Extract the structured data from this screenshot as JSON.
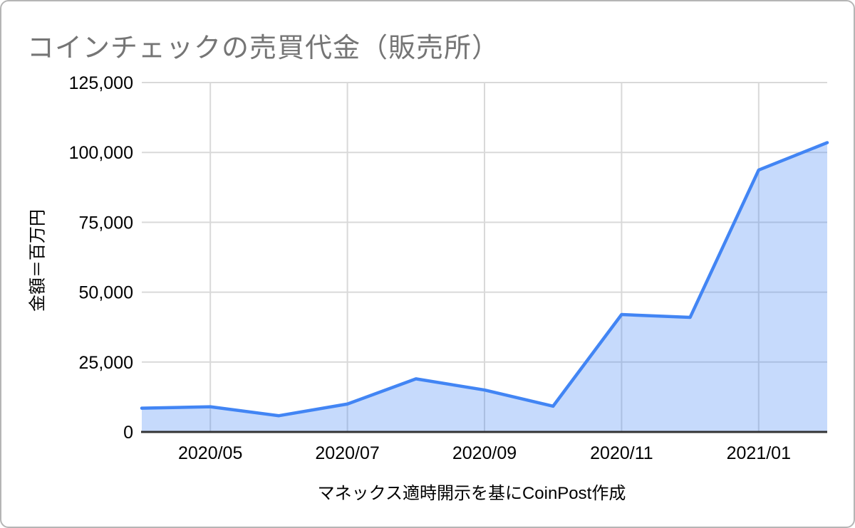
{
  "chart_data": {
    "type": "area",
    "title": "コインチェックの売買代金（販売所）",
    "ylabel": "金額＝百万円",
    "xlabel": "",
    "source_note": "マネックス適時開示を基にCoinPost作成",
    "categories": [
      "2020/04",
      "2020/05",
      "2020/06",
      "2020/07",
      "2020/08",
      "2020/09",
      "2020/10",
      "2020/11",
      "2020/12",
      "2021/01",
      "2021/02"
    ],
    "values": [
      8500,
      9000,
      5800,
      10000,
      19000,
      15000,
      9200,
      42000,
      41000,
      93700,
      103500
    ],
    "x_tick_labels": [
      "2020/05",
      "2020/07",
      "2020/09",
      "2020/11",
      "2021/01"
    ],
    "x_tick_indices": [
      1,
      3,
      5,
      7,
      9
    ],
    "ylim": [
      0,
      125000
    ],
    "ytick_step": 25000,
    "ytick_labels": [
      "0",
      "25,000",
      "50,000",
      "75,000",
      "100,000",
      "125,000"
    ],
    "grid": true,
    "legend": "none",
    "colors": {
      "line": "#4285f4",
      "fill": "rgba(66,133,244,0.30)",
      "grid": "#d9d9d9",
      "axis": "#333333",
      "title": "#757575",
      "tick_text": "#000000",
      "frame_border": "#b5b5b5"
    }
  }
}
